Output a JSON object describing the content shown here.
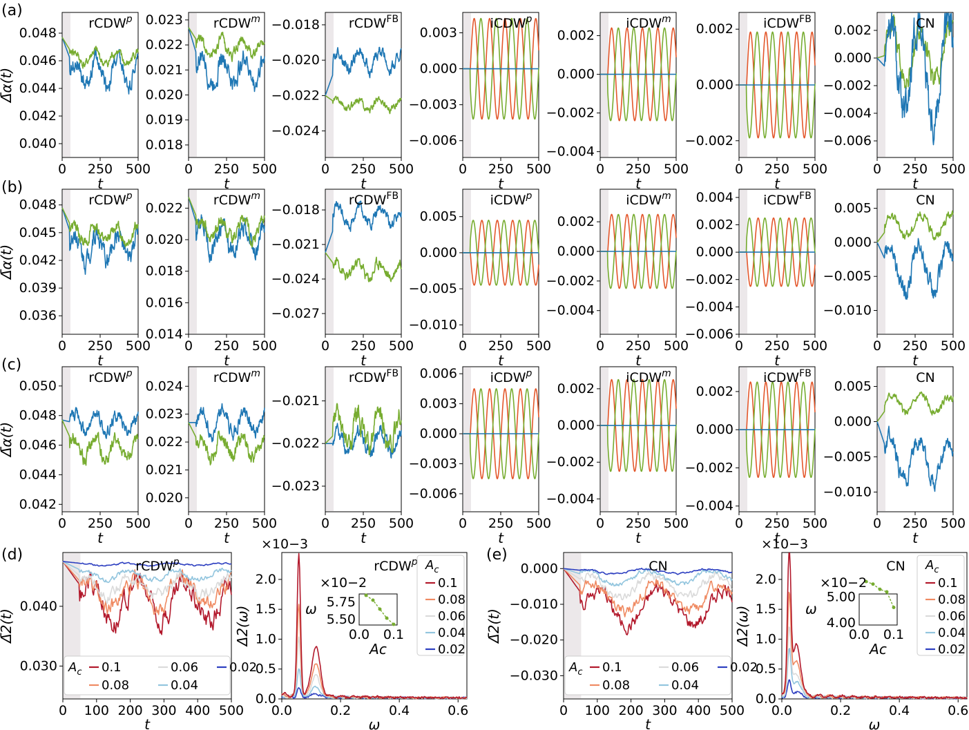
{
  "chart_data": [
    {
      "panel": "a",
      "title": "rCDW",
      "sup": "p",
      "type": "line",
      "ylabel": "Δ̄α(t)",
      "xlabel": "t",
      "ylim": [
        0.039,
        0.0495
      ],
      "yticks": [
        "0.040",
        "0.042",
        "0.044",
        "0.046",
        "0.048"
      ],
      "xticks": [
        "0",
        "250",
        "500"
      ],
      "series": [
        {
          "name": "blue",
          "color": "#1f77b4",
          "start": 0.0477,
          "mean": 0.0452,
          "amp": 0.0015
        },
        {
          "name": "green",
          "color": "#77ac30",
          "start": 0.0477,
          "mean": 0.0462,
          "amp": 0.0008
        }
      ]
    },
    {
      "panel": "a",
      "title": "rCDW",
      "sup": "m",
      "type": "line",
      "ylim": [
        0.0175,
        0.0233
      ],
      "yticks": [
        "0.018",
        "0.019",
        "0.020",
        "0.021",
        "0.022",
        "0.023"
      ],
      "xticks": [
        "0",
        "250",
        "500"
      ],
      "series": [
        {
          "name": "blue",
          "color": "#1f77b4",
          "start": 0.0227,
          "mean": 0.021,
          "amp": 0.0009
        },
        {
          "name": "green",
          "color": "#77ac30",
          "start": 0.0227,
          "mean": 0.0219,
          "amp": 0.0005
        }
      ]
    },
    {
      "panel": "a",
      "title": "rCDW",
      "sup": "FB",
      "type": "line",
      "ylim": [
        -0.0255,
        -0.0173
      ],
      "yticks": [
        "−0.024",
        "−0.022",
        "−0.020",
        "−0.018"
      ],
      "xticks": [
        "0",
        "250",
        "500"
      ],
      "series": [
        {
          "name": "blue",
          "color": "#1f77b4",
          "start": -0.022,
          "mean": -0.02,
          "amp": 0.0008
        },
        {
          "name": "green",
          "color": "#77ac30",
          "start": -0.022,
          "mean": -0.0225,
          "amp": 0.0005
        }
      ]
    },
    {
      "panel": "a",
      "title": "iCDW",
      "sup": "p",
      "type": "line",
      "ylim": [
        -0.0074,
        0.0047
      ],
      "yticks": [
        "−0.006",
        "−0.003",
        "0.000",
        "0.003"
      ],
      "xticks": [
        "0",
        "250",
        "500"
      ],
      "series": [
        {
          "name": "orange",
          "color": "#e3562a",
          "start": 0,
          "mean": 0,
          "amp": 0.0042
        },
        {
          "name": "green",
          "color": "#77ac30",
          "start": 0,
          "mean": 0,
          "amp": -0.0042
        },
        {
          "name": "blue",
          "color": "#1f77b4",
          "start": 0,
          "mean": 0,
          "amp": 0
        }
      ]
    },
    {
      "panel": "a",
      "title": "iCDW",
      "sup": "m",
      "type": "line",
      "ylim": [
        -0.0043,
        0.0032
      ],
      "yticks": [
        "−0.004",
        "−0.002",
        "0.000",
        "0.002"
      ],
      "xticks": [
        "0",
        "250",
        "500"
      ],
      "series": [
        {
          "name": "orange",
          "color": "#e3562a",
          "start": 0,
          "mean": 0,
          "amp": 0.0024
        },
        {
          "name": "green",
          "color": "#77ac30",
          "start": 0,
          "mean": 0,
          "amp": -0.0024
        },
        {
          "name": "blue",
          "color": "#1f77b4",
          "start": 0,
          "mean": 0,
          "amp": 0
        }
      ]
    },
    {
      "panel": "a",
      "title": "iCDW",
      "sup": "FB",
      "type": "line",
      "ylim": [
        -0.0026,
        0.0026
      ],
      "yticks": [
        "−0.002",
        "0.000",
        "0.002"
      ],
      "xticks": [
        "0",
        "250",
        "500"
      ],
      "series": [
        {
          "name": "orange",
          "color": "#e3562a",
          "start": 0,
          "mean": 0,
          "amp": 0.0019
        },
        {
          "name": "green",
          "color": "#77ac30",
          "start": 0,
          "mean": 0,
          "amp": -0.0019
        },
        {
          "name": "blue",
          "color": "#1f77b4",
          "start": 0,
          "mean": 0,
          "amp": 0
        }
      ]
    },
    {
      "panel": "a",
      "title": "CN",
      "sup": "",
      "type": "line",
      "ylim": [
        -0.0072,
        0.0033
      ],
      "yticks": [
        "−0.006",
        "−0.004",
        "−0.002",
        "0.000",
        "0.002"
      ],
      "xticks": [
        "0",
        "250",
        "500"
      ],
      "series": [
        {
          "name": "green",
          "color": "#77ac30",
          "start": 0,
          "mean": 0.0003,
          "amp": 0.0019
        },
        {
          "name": "blue",
          "color": "#1f77b4",
          "start": 0,
          "mean": -0.001,
          "amp": 0.0035
        }
      ]
    },
    {
      "panel": "b",
      "title": "rCDW",
      "sup": "p",
      "type": "line",
      "ylabel": "Δ̄α(t)",
      "xlabel": "t",
      "ylim": [
        0.034,
        0.0497
      ],
      "yticks": [
        "0.036",
        "0.039",
        "0.042",
        "0.045",
        "0.048"
      ],
      "xticks": [
        "0",
        "250",
        "500"
      ],
      "series": [
        {
          "name": "blue",
          "color": "#1f77b4",
          "start": 0.0477,
          "mean": 0.0435,
          "amp": 0.0025
        },
        {
          "name": "green",
          "color": "#77ac30",
          "start": 0.0477,
          "mean": 0.0448,
          "amp": 0.0015
        }
      ]
    },
    {
      "panel": "b",
      "title": "rCDW",
      "sup": "m",
      "type": "line",
      "ylim": [
        0.014,
        0.0232
      ],
      "yticks": [
        "0.014",
        "0.016",
        "0.018",
        "0.020",
        "0.022"
      ],
      "xticks": [
        "0",
        "250",
        "500"
      ],
      "series": [
        {
          "name": "blue",
          "color": "#1f77b4",
          "start": 0.0227,
          "mean": 0.02,
          "amp": 0.0015
        },
        {
          "name": "green",
          "color": "#77ac30",
          "start": 0.0227,
          "mean": 0.0207,
          "amp": 0.001
        }
      ]
    },
    {
      "panel": "b",
      "title": "rCDW",
      "sup": "FB",
      "type": "line",
      "ylim": [
        -0.0288,
        -0.0162
      ],
      "yticks": [
        "−0.027",
        "−0.024",
        "−0.021",
        "−0.018"
      ],
      "xticks": [
        "0",
        "250",
        "500"
      ],
      "series": [
        {
          "name": "blue",
          "color": "#1f77b4",
          "start": -0.0217,
          "mean": -0.0185,
          "amp": 0.0012
        },
        {
          "name": "green",
          "color": "#77ac30",
          "start": -0.0217,
          "mean": -0.0232,
          "amp": 0.0012
        }
      ]
    },
    {
      "panel": "b",
      "title": "iCDW",
      "sup": "p",
      "type": "line",
      "ylim": [
        -0.0113,
        0.0088
      ],
      "yticks": [
        "−0.010",
        "−0.005",
        "0.000",
        "0.005"
      ],
      "xticks": [
        "0",
        "250",
        "500"
      ],
      "series": [
        {
          "name": "orange",
          "color": "#e3562a",
          "start": 0,
          "mean": 0,
          "amp": -0.0045
        },
        {
          "name": "green",
          "color": "#77ac30",
          "start": 0,
          "mean": 0,
          "amp": 0.0045
        },
        {
          "name": "blue",
          "color": "#1f77b4",
          "start": 0,
          "mean": 0,
          "amp": 0
        }
      ]
    },
    {
      "panel": "b",
      "title": "iCDW",
      "sup": "m",
      "type": "line",
      "ylim": [
        -0.0056,
        0.0042
      ],
      "yticks": [
        "−0.004",
        "−0.002",
        "0.000",
        "0.002"
      ],
      "xticks": [
        "0",
        "250",
        "500"
      ],
      "series": [
        {
          "name": "orange",
          "color": "#e3562a",
          "start": 0,
          "mean": 0,
          "amp": 0.0025
        },
        {
          "name": "green",
          "color": "#77ac30",
          "start": 0,
          "mean": 0,
          "amp": -0.0025
        },
        {
          "name": "blue",
          "color": "#1f77b4",
          "start": 0,
          "mean": 0,
          "amp": 0
        }
      ]
    },
    {
      "panel": "b",
      "title": "iCDW",
      "sup": "FB",
      "type": "line",
      "ylim": [
        -0.006,
        0.0046
      ],
      "yticks": [
        "−0.006",
        "−0.004",
        "−0.002",
        "0.000",
        "0.002",
        "0.004"
      ],
      "xticks": [
        "0",
        "250",
        "500"
      ],
      "series": [
        {
          "name": "orange",
          "color": "#e3562a",
          "start": 0,
          "mean": 0,
          "amp": -0.0025
        },
        {
          "name": "green",
          "color": "#77ac30",
          "start": 0,
          "mean": 0,
          "amp": 0.0025
        },
        {
          "name": "blue",
          "color": "#1f77b4",
          "start": 0,
          "mean": 0,
          "amp": 0
        }
      ]
    },
    {
      "panel": "b",
      "title": "CN",
      "sup": "",
      "type": "line",
      "ylim": [
        -0.0135,
        0.0078
      ],
      "yticks": [
        "−0.010",
        "−0.005",
        "0.000",
        "0.005"
      ],
      "xticks": [
        "0",
        "250",
        "500"
      ],
      "series": [
        {
          "name": "green",
          "color": "#77ac30",
          "start": 0,
          "mean": 0.0025,
          "amp": 0.0015
        },
        {
          "name": "blue",
          "color": "#1f77b4",
          "start": 0,
          "mean": -0.004,
          "amp": 0.0035
        }
      ]
    },
    {
      "panel": "c",
      "title": "rCDW",
      "sup": "p",
      "type": "line",
      "ylabel": "Δ̄α(t)",
      "xlabel": "t",
      "ylim": [
        0.0415,
        0.0513
      ],
      "yticks": [
        "0.042",
        "0.044",
        "0.046",
        "0.048",
        "0.050"
      ],
      "xticks": [
        "0",
        "250",
        "500"
      ],
      "series": [
        {
          "name": "blue",
          "color": "#1f77b4",
          "start": 0.0477,
          "mean": 0.0475,
          "amp": 0.001
        },
        {
          "name": "green",
          "color": "#77ac30",
          "start": 0.0477,
          "mean": 0.0458,
          "amp": 0.0012
        }
      ]
    },
    {
      "panel": "c",
      "title": "rCDW",
      "sup": "m",
      "type": "line",
      "ylim": [
        0.0195,
        0.0247
      ],
      "yticks": [
        "0.020",
        "0.021",
        "0.022",
        "0.023",
        "0.024"
      ],
      "xticks": [
        "0",
        "250",
        "500"
      ],
      "series": [
        {
          "name": "blue",
          "color": "#1f77b4",
          "start": 0.0227,
          "mean": 0.0227,
          "amp": 0.0006
        },
        {
          "name": "green",
          "color": "#77ac30",
          "start": 0.0227,
          "mean": 0.0218,
          "amp": 0.0006
        }
      ]
    },
    {
      "panel": "c",
      "title": "rCDW",
      "sup": "FB",
      "type": "line",
      "ylim": [
        -0.0236,
        -0.0202
      ],
      "yticks": [
        "−0.023",
        "−0.022",
        "−0.021"
      ],
      "xticks": [
        "0",
        "250",
        "500"
      ],
      "series": [
        {
          "name": "blue",
          "color": "#1f77b4",
          "start": -0.022,
          "mean": -0.022,
          "amp": 0.0004
        },
        {
          "name": "green",
          "color": "#77ac30",
          "start": -0.022,
          "mean": -0.0217,
          "amp": 0.0006
        }
      ]
    },
    {
      "panel": "c",
      "title": "iCDW",
      "sup": "p",
      "type": "line",
      "ylim": [
        -0.0078,
        0.0067
      ],
      "yticks": [
        "−0.006",
        "−0.003",
        "0.000",
        "0.003",
        "0.006"
      ],
      "xticks": [
        "0",
        "250",
        "500"
      ],
      "series": [
        {
          "name": "orange",
          "color": "#e3562a",
          "start": 0,
          "mean": 0,
          "amp": 0.0045
        },
        {
          "name": "green",
          "color": "#77ac30",
          "start": 0,
          "mean": 0,
          "amp": -0.0045
        },
        {
          "name": "blue",
          "color": "#1f77b4",
          "start": 0,
          "mean": 0,
          "amp": 0
        }
      ]
    },
    {
      "panel": "c",
      "title": "iCDW",
      "sup": "m",
      "type": "line",
      "ylim": [
        -0.0047,
        0.0032
      ],
      "yticks": [
        "−0.004",
        "−0.002",
        "0.000",
        "0.002"
      ],
      "xticks": [
        "0",
        "250",
        "500"
      ],
      "series": [
        {
          "name": "orange",
          "color": "#e3562a",
          "start": 0,
          "mean": 0,
          "amp": 0.0025
        },
        {
          "name": "green",
          "color": "#77ac30",
          "start": 0,
          "mean": 0,
          "amp": -0.0025
        },
        {
          "name": "blue",
          "color": "#1f77b4",
          "start": 0,
          "mean": 0,
          "amp": 0
        }
      ]
    },
    {
      "panel": "c",
      "title": "iCDW",
      "sup": "FB",
      "type": "line",
      "ylim": [
        -0.0043,
        0.0033
      ],
      "yticks": [
        "−0.004",
        "−0.002",
        "0.000",
        "0.002"
      ],
      "xticks": [
        "0",
        "250",
        "500"
      ],
      "series": [
        {
          "name": "orange",
          "color": "#e3562a",
          "start": 0,
          "mean": 0,
          "amp": 0.0025
        },
        {
          "name": "green",
          "color": "#77ac30",
          "start": 0,
          "mean": 0,
          "amp": -0.0025
        },
        {
          "name": "blue",
          "color": "#1f77b4",
          "start": 0,
          "mean": 0,
          "amp": 0
        }
      ]
    },
    {
      "panel": "c",
      "title": "CN",
      "sup": "",
      "type": "line",
      "ylim": [
        -0.0128,
        0.0078
      ],
      "yticks": [
        "−0.010",
        "−0.005",
        "0.000",
        "0.005"
      ],
      "xticks": [
        "0",
        "250",
        "500"
      ],
      "series": [
        {
          "name": "green",
          "color": "#77ac30",
          "start": 0,
          "mean": 0.0025,
          "amp": 0.0012
        },
        {
          "name": "blue",
          "color": "#1f77b4",
          "start": 0,
          "mean": -0.0055,
          "amp": 0.003
        }
      ]
    },
    {
      "panel": "d",
      "title": "rCDW",
      "sup": "p",
      "type": "line",
      "ylabel": "Δ̄2(t)",
      "xlabel": "t",
      "ylim": [
        0.0245,
        0.049
      ],
      "yticks": [
        "0.030",
        "0.040"
      ],
      "xticks": [
        "0",
        "100",
        "200",
        "300",
        "400",
        "500"
      ],
      "legend_title": "Ac",
      "legend": [
        "0.1",
        "0.08",
        "0.06",
        "0.04",
        "0.02"
      ],
      "series": [
        {
          "name": "0.1",
          "color": "#b2182b",
          "start": 0.0475,
          "mean": 0.041,
          "amp": 0.005
        },
        {
          "name": "0.08",
          "color": "#ef8a62",
          "start": 0.0475,
          "mean": 0.042,
          "amp": 0.0035
        },
        {
          "name": "0.06",
          "color": "#dadada",
          "start": 0.0475,
          "mean": 0.0435,
          "amp": 0.0025
        },
        {
          "name": "0.04",
          "color": "#92c5de",
          "start": 0.0475,
          "mean": 0.0452,
          "amp": 0.0012
        },
        {
          "name": "0.02",
          "color": "#2c3ec0",
          "start": 0.0475,
          "mean": 0.047,
          "amp": 0.0003
        }
      ]
    },
    {
      "panel": "d",
      "title": "rCDW",
      "sup": "p",
      "type": "line",
      "ylabel": "Δ2(ω)",
      "xlabel": "ω",
      "multiplier": "×10−3",
      "ylim": [
        0,
        2.45
      ],
      "yticks": [
        "0.0",
        "0.5",
        "1.0",
        "1.5",
        "2.0"
      ],
      "xticks": [
        "0.0",
        "0.2",
        "0.4",
        "0.6"
      ],
      "peak_values": [
        2.38,
        1.55,
        1.0,
        0.48,
        0.15
      ],
      "peak_omega": 0.058,
      "inset": {
        "ylabel": "ω",
        "xlabel": "Ac",
        "multiplier": "×10−2",
        "yticks": [
          "5.50",
          "5.75"
        ],
        "xticks": [
          "0.0",
          "0.1"
        ],
        "x": [
          0.02,
          0.04,
          0.06,
          0.08,
          0.1
        ],
        "y": [
          5.85,
          5.78,
          5.65,
          5.52,
          5.43
        ]
      },
      "legend_title": "Ac",
      "legend": [
        "0.1",
        "0.08",
        "0.06",
        "0.04",
        "0.02"
      ]
    },
    {
      "panel": "e",
      "title": "CN",
      "sup": "",
      "type": "line",
      "ylabel": "Δ̄2(t)",
      "xlabel": "t",
      "ylim": [
        -0.0365,
        0.0045
      ],
      "yticks": [
        "−0.030",
        "−0.020",
        "−0.010",
        "0.000"
      ],
      "xticks": [
        "0",
        "100",
        "200",
        "300",
        "400",
        "500"
      ],
      "legend_title": "Ac",
      "legend": [
        "0.1",
        "0.08",
        "0.06",
        "0.04",
        "0.02"
      ],
      "series": [
        {
          "name": "0.1",
          "color": "#b2182b",
          "start": 0,
          "mean": -0.011,
          "amp": 0.005
        },
        {
          "name": "0.08",
          "color": "#ef8a62",
          "start": 0,
          "mean": -0.008,
          "amp": 0.004
        },
        {
          "name": "0.06",
          "color": "#dadada",
          "start": 0,
          "mean": -0.005,
          "amp": 0.003
        },
        {
          "name": "0.04",
          "color": "#92c5de",
          "start": 0,
          "mean": -0.0025,
          "amp": 0.0018
        },
        {
          "name": "0.02",
          "color": "#2c3ec0",
          "start": 0,
          "mean": -0.0008,
          "amp": 0.0006
        }
      ]
    },
    {
      "panel": "e",
      "title": "CN",
      "sup": "",
      "type": "line",
      "ylabel": "Δ2(ω)",
      "xlabel": "ω",
      "multiplier": "×10−3",
      "ylim": [
        0,
        2.45
      ],
      "yticks": [
        "0.0",
        "0.5",
        "1.0",
        "1.5",
        "2.0"
      ],
      "xticks": [
        "0.0",
        "0.2",
        "0.4",
        "0.6"
      ],
      "peak_values": [
        2.38,
        1.65,
        1.1,
        0.75,
        0.25
      ],
      "peak_omega": 0.025,
      "inset": {
        "ylabel": "ω",
        "xlabel": "Ac",
        "multiplier": "×10−2",
        "yticks": [
          "4.00",
          "5.00"
        ],
        "xticks": [
          "0.0",
          "0.1"
        ],
        "x": [
          0.02,
          0.04,
          0.06,
          0.08,
          0.1
        ],
        "y": [
          5.6,
          5.5,
          5.3,
          5.2,
          4.6
        ]
      },
      "legend_title": "Ac",
      "legend": [
        "0.1",
        "0.08",
        "0.06",
        "0.04",
        "0.02"
      ]
    }
  ],
  "labels": {
    "a": "(a)",
    "b": "(b)",
    "c": "(c)",
    "d": "(d)",
    "e": "(e)"
  }
}
